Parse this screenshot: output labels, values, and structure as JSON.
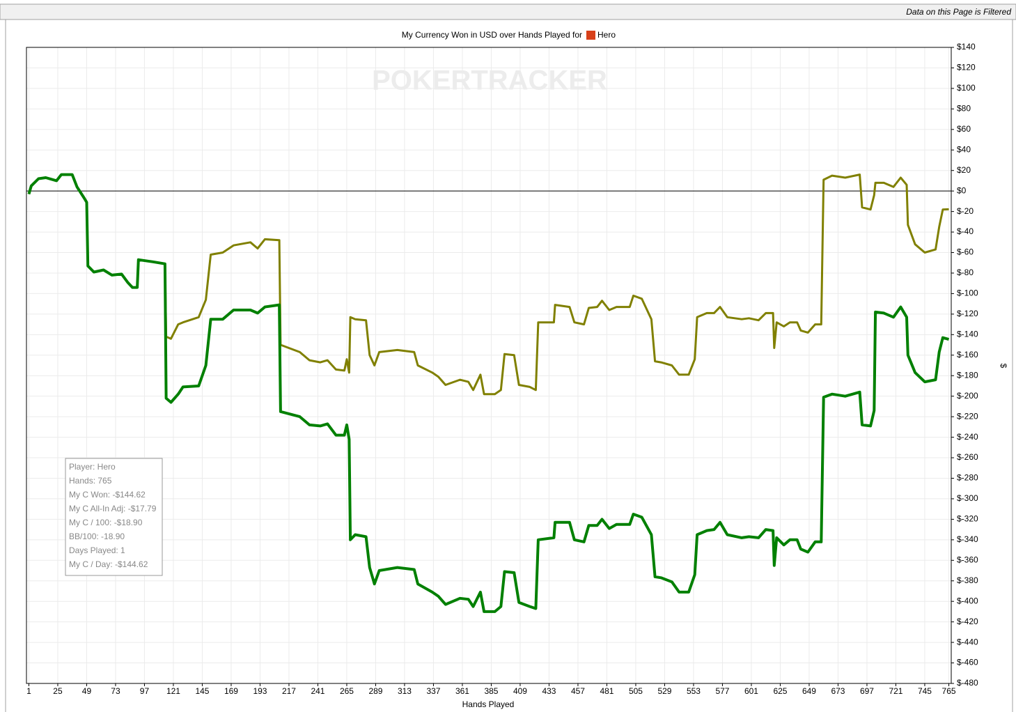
{
  "header": {
    "filter_note": "Data on this Page is Filtered"
  },
  "chart_data": {
    "type": "line",
    "title": "My Currency Won in USD over Hands Played for",
    "player": "Hero",
    "watermark": "POKERTRACKER",
    "x_label": "Hands Played",
    "y_label": "$",
    "xlim": [
      -1,
      767
    ],
    "xticks": [
      1,
      25,
      49,
      73,
      97,
      121,
      145,
      169,
      193,
      217,
      241,
      265,
      289,
      313,
      337,
      361,
      385,
      409,
      433,
      457,
      481,
      505,
      529,
      553,
      577,
      601,
      625,
      649,
      673,
      697,
      721,
      745,
      765
    ],
    "ylim": [
      -480,
      140
    ],
    "yticks": [
      {
        "value": -480,
        "label": "$-480"
      },
      {
        "value": -460,
        "label": "$-460"
      },
      {
        "value": -440,
        "label": "$-440"
      },
      {
        "value": -420,
        "label": "$-420"
      },
      {
        "value": -400,
        "label": "$-400"
      },
      {
        "value": -380,
        "label": "$-380"
      },
      {
        "value": -360,
        "label": "$-360"
      },
      {
        "value": -340,
        "label": "$-340"
      },
      {
        "value": -320,
        "label": "$-320"
      },
      {
        "value": -300,
        "label": "$-300"
      },
      {
        "value": -280,
        "label": "$-280"
      },
      {
        "value": -260,
        "label": "$-260"
      },
      {
        "value": -240,
        "label": "$-240"
      },
      {
        "value": -220,
        "label": "$-220"
      },
      {
        "value": -200,
        "label": "$-200"
      },
      {
        "value": -180,
        "label": "$-180"
      },
      {
        "value": -160,
        "label": "$-160"
      },
      {
        "value": -140,
        "label": "$-140"
      },
      {
        "value": -120,
        "label": "$-120"
      },
      {
        "value": -100,
        "label": "$-100"
      },
      {
        "value": -80,
        "label": "$-80"
      },
      {
        "value": -60,
        "label": "$-60"
      },
      {
        "value": -40,
        "label": "$-40"
      },
      {
        "value": -20,
        "label": "$-20"
      },
      {
        "value": 0,
        "label": "$0"
      },
      {
        "value": 20,
        "label": "$20"
      },
      {
        "value": 40,
        "label": "$40"
      },
      {
        "value": 60,
        "label": "$60"
      },
      {
        "value": 80,
        "label": "$80"
      },
      {
        "value": 100,
        "label": "$100"
      },
      {
        "value": 120,
        "label": "$120"
      },
      {
        "value": 140,
        "label": "$140"
      }
    ],
    "grid": true,
    "zero_line": true,
    "x": [
      1,
      3,
      9,
      15,
      24,
      28,
      37,
      41,
      47,
      49,
      50,
      55,
      63,
      70,
      78,
      83,
      87,
      91,
      92,
      104,
      114,
      115,
      119,
      125,
      129,
      142,
      148,
      152,
      162,
      171,
      185,
      191,
      197,
      209,
      210,
      226,
      234,
      243,
      249,
      256,
      263,
      265,
      267,
      268,
      272,
      281,
      284,
      288,
      292,
      307,
      321,
      324,
      336,
      341,
      347,
      359,
      366,
      370,
      376,
      379,
      388,
      393,
      396,
      404,
      408,
      417,
      422,
      424,
      437,
      438,
      450,
      454,
      462,
      466,
      473,
      477,
      483,
      489,
      500,
      503,
      510,
      518,
      521,
      526,
      535,
      541,
      549,
      554,
      556,
      564,
      570,
      575,
      581,
      593,
      599,
      607,
      613,
      619,
      620,
      622,
      628,
      633,
      639,
      642,
      648,
      654,
      659,
      661,
      668,
      679,
      691,
      693,
      700,
      703,
      704,
      711,
      719,
      725,
      730,
      731,
      737,
      745,
      754,
      757,
      760,
      765
    ],
    "series": [
      {
        "color": "#808000",
        "width": 3,
        "values": [
          -3,
          5,
          12,
          13,
          10,
          16,
          16,
          4,
          -7,
          -11,
          -73,
          -79,
          -77,
          -82,
          -81,
          -89,
          -94,
          -94,
          -67,
          -69,
          -71,
          -142,
          -144,
          -130,
          -128,
          -123,
          -106,
          -62,
          -60,
          -53,
          -50,
          -56,
          -47,
          -48,
          -150,
          -157,
          -165,
          -167,
          -165,
          -174,
          -175,
          -164,
          -177,
          -123,
          -125,
          -126,
          -160,
          -170,
          -157,
          -155,
          -157,
          -170,
          -177,
          -181,
          -189,
          -184,
          -186,
          -194,
          -179,
          -198,
          -198,
          -194,
          -159,
          -160,
          -189,
          -191,
          -194,
          -128,
          -128,
          -111,
          -113,
          -128,
          -130,
          -114,
          -113,
          -107,
          -116,
          -113,
          -113,
          -102,
          -105,
          -125,
          -166,
          -167,
          -170,
          -179,
          -179,
          -164,
          -123,
          -119,
          -119,
          -113,
          -123,
          -125,
          -124,
          -126,
          -119,
          -119,
          -153,
          -128,
          -132,
          -128,
          -128,
          -136,
          -138,
          -130,
          -130,
          11,
          15,
          13,
          16,
          -16,
          -18,
          -4,
          8,
          8,
          4,
          13,
          6,
          -33,
          -52,
          -60,
          -57,
          -35,
          -18,
          -17.79
        ]
      },
      {
        "color": "#008000",
        "width": 4,
        "values": [
          -3,
          5,
          12,
          13,
          10,
          16,
          16,
          4,
          -7,
          -11,
          -73,
          -79,
          -77,
          -82,
          -81,
          -89,
          -94,
          -94,
          -67,
          -69,
          -71,
          -202,
          -206,
          -198,
          -191,
          -190,
          -170,
          -125,
          -125,
          -116,
          -116,
          -119,
          -113,
          -111,
          -215,
          -220,
          -228,
          -229,
          -227,
          -238,
          -238,
          -228,
          -242,
          -340,
          -335,
          -337,
          -367,
          -383,
          -370,
          -367,
          -369,
          -383,
          -391,
          -395,
          -403,
          -397,
          -398,
          -405,
          -391,
          -410,
          -410,
          -405,
          -371,
          -372,
          -401,
          -405,
          -407,
          -340,
          -338,
          -323,
          -323,
          -340,
          -342,
          -326,
          -326,
          -320,
          -329,
          -325,
          -325,
          -315,
          -318,
          -335,
          -376,
          -377,
          -381,
          -391,
          -391,
          -374,
          -335,
          -331,
          -330,
          -323,
          -335,
          -338,
          -337,
          -338,
          -330,
          -331,
          -365,
          -338,
          -345,
          -340,
          -340,
          -349,
          -352,
          -342,
          -342,
          -201,
          -198,
          -200,
          -196,
          -228,
          -229,
          -214,
          -118,
          -119,
          -123,
          -113,
          -123,
          -160,
          -177,
          -186,
          -184,
          -157,
          -143,
          -144.62
        ]
      }
    ],
    "info_box": [
      "Player: Hero",
      "Hands: 765",
      "My C Won: -$144.62",
      "My C All-In Adj: -$17.79",
      "My C / 100: -$18.90",
      "BB/100: -18.90",
      "Days Played: 1",
      "My C / Day: -$144.62"
    ]
  }
}
